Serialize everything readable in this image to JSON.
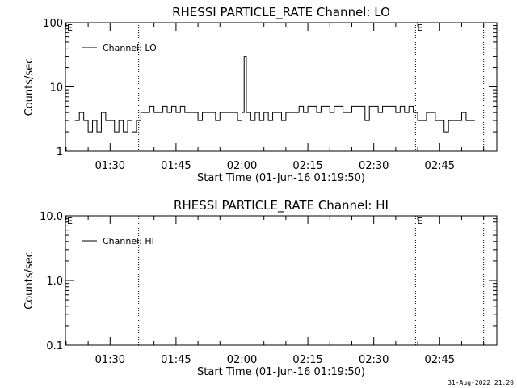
{
  "footer": {
    "timestamp": "31-Aug-2022 21:20"
  },
  "chart_data": [
    {
      "type": "line",
      "title": "RHESSI PARTICLE_RATE Channel: LO",
      "xlabel": "Start Time (01-Jun-16 01:19:50)",
      "ylabel": "Counts/sec",
      "y_scale": "log",
      "ylim": [
        1,
        100
      ],
      "ytick_labels": [
        "1",
        "10",
        "100"
      ],
      "ytick_values": [
        1,
        10,
        100
      ],
      "xlim": [
        "01:19:50",
        "02:58:00"
      ],
      "xtick_labels": [
        "01:30",
        "01:45",
        "02:00",
        "02:15",
        "02:30",
        "02:45"
      ],
      "xtick_values": [
        "01:30",
        "01:45",
        "02:00",
        "02:15",
        "02:30",
        "02:45"
      ],
      "legend": {
        "position": "top-left",
        "entries": [
          "Channel: LO"
        ]
      },
      "grid": false,
      "markers": [
        {
          "label": "",
          "x": "01:36:30"
        },
        {
          "label": "E",
          "x": "01:19:50"
        },
        {
          "label": "E",
          "x": "02:39:30"
        },
        {
          "label": "",
          "x": "02:55:00"
        }
      ],
      "series": [
        {
          "name": "Channel: LO",
          "x": [
            "01:22",
            "01:23",
            "01:24",
            "01:25",
            "01:26",
            "01:27",
            "01:28",
            "01:29",
            "01:30",
            "01:31",
            "01:32",
            "01:33",
            "01:34",
            "01:35",
            "01:36",
            "01:37",
            "01:38",
            "01:39",
            "01:40",
            "01:41",
            "01:42",
            "01:43",
            "01:44",
            "01:45",
            "01:46",
            "01:47",
            "01:48",
            "01:49",
            "01:50",
            "01:51",
            "01:52",
            "01:53",
            "01:54",
            "01:55",
            "01:56",
            "01:57",
            "01:58",
            "01:59",
            "02:00",
            "02:00:30",
            "02:01",
            "02:02",
            "02:03",
            "02:04",
            "02:05",
            "02:06",
            "02:07",
            "02:08",
            "02:09",
            "02:10",
            "02:11",
            "02:12",
            "02:13",
            "02:14",
            "02:15",
            "02:16",
            "02:17",
            "02:18",
            "02:19",
            "02:20",
            "02:21",
            "02:22",
            "02:23",
            "02:24",
            "02:25",
            "02:26",
            "02:27",
            "02:28",
            "02:29",
            "02:30",
            "02:31",
            "02:32",
            "02:33",
            "02:34",
            "02:35",
            "02:36",
            "02:37",
            "02:38",
            "02:39",
            "02:40",
            "02:41",
            "02:42",
            "02:43",
            "02:44",
            "02:45",
            "02:46",
            "02:47",
            "02:48",
            "02:49",
            "02:50",
            "02:51",
            "02:52",
            "02:53"
          ],
          "values": [
            3,
            4,
            3,
            2,
            3,
            2,
            4,
            3,
            3,
            2,
            3,
            2,
            3,
            2,
            3,
            4,
            4,
            5,
            4,
            4,
            5,
            4,
            5,
            4,
            5,
            4,
            4,
            4,
            3,
            4,
            4,
            4,
            3,
            4,
            4,
            4,
            4,
            3,
            4,
            30,
            4,
            3,
            4,
            3,
            4,
            3,
            4,
            4,
            3,
            4,
            4,
            4,
            5,
            4,
            5,
            5,
            4,
            5,
            5,
            4,
            5,
            5,
            4,
            4,
            5,
            5,
            5,
            3,
            5,
            5,
            4,
            5,
            5,
            5,
            4,
            5,
            4,
            5,
            4,
            3,
            3,
            4,
            4,
            3,
            3,
            2,
            3,
            3,
            3,
            4,
            3,
            3,
            3
          ]
        }
      ]
    },
    {
      "type": "line",
      "title": "RHESSI PARTICLE_RATE Channel: HI",
      "xlabel": "Start Time (01-Jun-16 01:19:50)",
      "ylabel": "Counts/sec",
      "y_scale": "log",
      "ylim": [
        0.1,
        10
      ],
      "ytick_labels": [
        "0.1",
        "1.0",
        "10.0"
      ],
      "ytick_values": [
        0.1,
        1,
        10
      ],
      "xlim": [
        "01:19:50",
        "02:58:00"
      ],
      "xtick_labels": [
        "01:30",
        "01:45",
        "02:00",
        "02:15",
        "02:30",
        "02:45"
      ],
      "xtick_values": [
        "01:30",
        "01:45",
        "02:00",
        "02:15",
        "02:30",
        "02:45"
      ],
      "legend": {
        "position": "top-left",
        "entries": [
          "Channel: HI"
        ]
      },
      "grid": false,
      "markers": [
        {
          "label": "",
          "x": "01:36:30"
        },
        {
          "label": "E",
          "x": "01:19:50"
        },
        {
          "label": "E",
          "x": "02:39:30"
        },
        {
          "label": "",
          "x": "02:55:00"
        }
      ],
      "series": [
        {
          "name": "Channel: HI",
          "x": [],
          "values": []
        }
      ]
    }
  ]
}
